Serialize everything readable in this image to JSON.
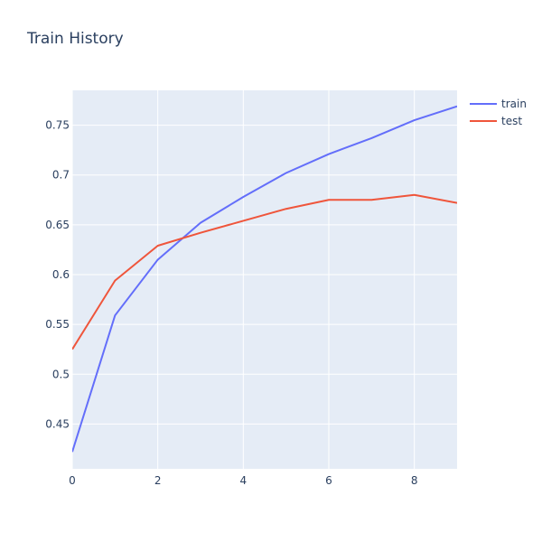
{
  "chart_data": {
    "type": "line",
    "title": "Train History",
    "xlabel": "",
    "ylabel": "",
    "xlim": [
      0,
      9
    ],
    "ylim": [
      0.405,
      0.785
    ],
    "x_ticks": [
      0,
      2,
      4,
      6,
      8
    ],
    "y_ticks": [
      0.45,
      0.5,
      0.55,
      0.6,
      0.65,
      0.7,
      0.75
    ],
    "y_tick_labels": [
      "0.45",
      "0.5",
      "0.55",
      "0.6",
      "0.65",
      "0.7",
      "0.75"
    ],
    "x": [
      0,
      1,
      2,
      3,
      4,
      5,
      6,
      7,
      8,
      9
    ],
    "series": [
      {
        "name": "train",
        "color": "#636efa",
        "values": [
          0.422,
          0.559,
          0.615,
          0.652,
          0.678,
          0.702,
          0.721,
          0.737,
          0.755,
          0.769
        ]
      },
      {
        "name": "test",
        "color": "#ef553b",
        "values": [
          0.525,
          0.594,
          0.629,
          0.642,
          0.654,
          0.666,
          0.675,
          0.675,
          0.68,
          0.672
        ]
      }
    ],
    "grid": true,
    "legend_position": "top-right",
    "plot_background": "#e5ecf6"
  }
}
